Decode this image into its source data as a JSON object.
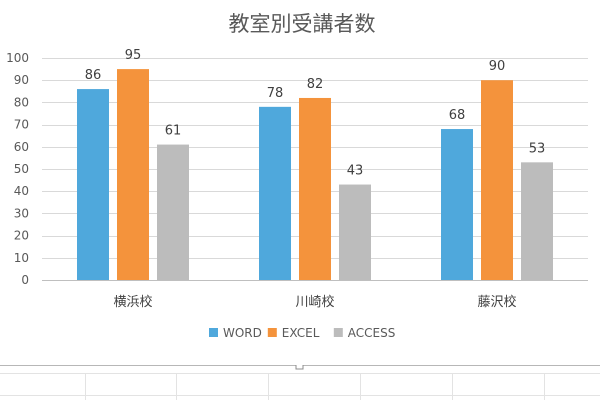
{
  "chart_data": {
    "type": "bar",
    "title": "教室別受講者数",
    "categories": [
      "横浜校",
      "川崎校",
      "藤沢校"
    ],
    "series": [
      {
        "name": "WORD",
        "color": "#4fa8dc",
        "values": [
          86,
          78,
          68
        ]
      },
      {
        "name": "EXCEL",
        "color": "#f4933c",
        "values": [
          95,
          82,
          90
        ]
      },
      {
        "name": "ACCESS",
        "color": "#bcbcbc",
        "values": [
          61,
          43,
          53
        ]
      }
    ],
    "ylim": [
      0,
      100
    ],
    "yticks": [
      0,
      10,
      20,
      30,
      40,
      50,
      60,
      70,
      80,
      90,
      100
    ],
    "grid": true,
    "legend_position": "bottom",
    "data_labels": true
  }
}
